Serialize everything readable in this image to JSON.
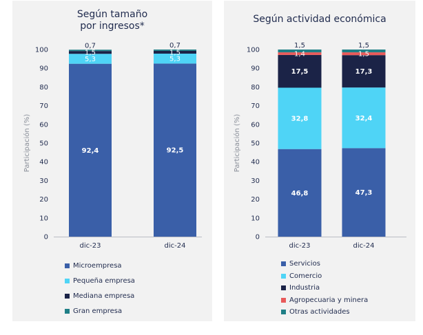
{
  "chart_data": [
    {
      "type": "bar",
      "stacked": true,
      "title": "Según tamaño por ingresos*",
      "title_lines": [
        "Según tamaño",
        "por ingresos*"
      ],
      "ylabel": "Participación (%)",
      "ylim": [
        0,
        100
      ],
      "yticks": [
        "0",
        "10",
        "20",
        "30",
        "40",
        "50",
        "60",
        "70",
        "80",
        "90",
        "100"
      ],
      "categories": [
        "dic-23",
        "dic-24"
      ],
      "series": [
        {
          "name": "Microempresa",
          "color": "#3a5fa8",
          "values": [
            92.4,
            92.5
          ],
          "labels": [
            "92,4",
            "92,5"
          ]
        },
        {
          "name": "Pequeña empresa",
          "color": "#4fd4f6",
          "values": [
            5.3,
            5.3
          ],
          "labels": [
            "5,3",
            "5,3"
          ]
        },
        {
          "name": "Mediana empresa",
          "color": "#1b2347",
          "values": [
            1.5,
            1.5
          ],
          "labels": [
            "1,5",
            "1,5"
          ]
        },
        {
          "name": "Gran empresa",
          "color": "#1f7f86",
          "values": [
            0.7,
            0.7
          ],
          "labels": [
            "0,7",
            "0,7"
          ]
        }
      ],
      "legend_position": "bottom",
      "grid": false
    },
    {
      "type": "bar",
      "stacked": true,
      "title": "Según actividad económica",
      "title_lines": [
        "Según actividad económica"
      ],
      "ylabel": "Participación (%)",
      "ylim": [
        0,
        100
      ],
      "yticks": [
        "0",
        "10",
        "20",
        "30",
        "40",
        "50",
        "60",
        "70",
        "80",
        "90",
        "100"
      ],
      "categories": [
        "dic-23",
        "dic-24"
      ],
      "series": [
        {
          "name": "Servicios",
          "color": "#3a5fa8",
          "values": [
            46.8,
            47.3
          ],
          "labels": [
            "46,8",
            "47,3"
          ]
        },
        {
          "name": "Comercio",
          "color": "#4fd4f6",
          "values": [
            32.8,
            32.4
          ],
          "labels": [
            "32,8",
            "32,4"
          ]
        },
        {
          "name": "Industria",
          "color": "#1b2347",
          "values": [
            17.5,
            17.3
          ],
          "labels": [
            "17,5",
            "17,3"
          ]
        },
        {
          "name": "Agropecuaria y minera",
          "color": "#e85a5a",
          "values": [
            1.4,
            1.5
          ],
          "labels": [
            "1,4",
            "1,5"
          ]
        },
        {
          "name": "Otras actividades",
          "color": "#1f7f86",
          "values": [
            1.5,
            1.5
          ],
          "labels": [
            "1,5",
            "1,5"
          ]
        }
      ],
      "legend_position": "bottom",
      "grid": false
    }
  ]
}
